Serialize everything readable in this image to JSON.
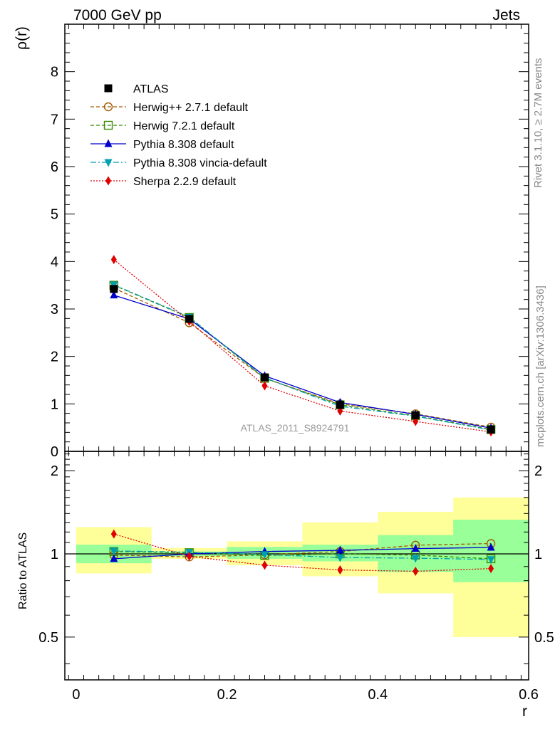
{
  "header": {
    "left": "7000 GeV pp",
    "right": "Jets"
  },
  "side_labels": {
    "top": "Rivet 3.1.10, ≥ 2.7M events",
    "bottom": "mcplots.cern.ch [arXiv:1306.3436]"
  },
  "watermark": "ATLAS_2011_S8924791",
  "chart_data": {
    "type": "line",
    "xlabel": "r",
    "ylabel": "ρ(r)",
    "ratio_ylabel": "Ratio to ATLAS",
    "xlim": [
      -0.015,
      0.6
    ],
    "ylim": [
      0,
      9.0
    ],
    "ratio_ylim": [
      0.35,
      2.35
    ],
    "x_ticks": [
      "0",
      "0.2",
      "0.4",
      "0.6"
    ],
    "y_ticks": [
      "0",
      "1",
      "2",
      "3",
      "4",
      "5",
      "6",
      "7",
      "8"
    ],
    "ratio_ticks": [
      "0.5",
      "1",
      "2"
    ],
    "ratio_tick_values": [
      0.5,
      1,
      2
    ],
    "x": [
      0.05,
      0.15,
      0.25,
      0.35,
      0.45,
      0.55
    ],
    "bin_edges": [
      0.0,
      0.1,
      0.2,
      0.3,
      0.4,
      0.5,
      0.6
    ],
    "reference": {
      "name": "ATLAS",
      "values": [
        3.42,
        2.79,
        1.56,
        0.98,
        0.76,
        0.46
      ],
      "band_stat": [
        [
          0.925,
          1.08
        ],
        [
          0.98,
          1.02
        ],
        [
          0.96,
          1.06
        ],
        [
          0.94,
          1.08
        ],
        [
          0.86,
          1.17
        ],
        [
          0.79,
          1.33
        ]
      ],
      "band_total": [
        [
          0.85,
          1.25
        ],
        [
          0.96,
          1.05
        ],
        [
          0.91,
          1.11
        ],
        [
          0.83,
          1.3
        ],
        [
          0.72,
          1.42
        ],
        [
          0.5,
          1.6
        ]
      ]
    },
    "series": [
      {
        "name": "Herwig++ 2.7.1 default",
        "color": "#a05a00",
        "dash": "5,3",
        "marker": "circle-open",
        "values": [
          3.44,
          2.71,
          1.54,
          1.0,
          0.79,
          0.51
        ],
        "ratio": [
          0.99,
          0.975,
          0.992,
          1.02,
          1.075,
          1.09
        ]
      },
      {
        "name": "Herwig 7.2.1 default",
        "color": "#3a8a00",
        "dash": "5,3",
        "marker": "square-open",
        "values": [
          3.5,
          2.82,
          1.54,
          0.98,
          0.75,
          0.46
        ],
        "ratio": [
          1.02,
          1.01,
          0.987,
          1.0,
          0.99,
          0.96
        ]
      },
      {
        "name": "Pythia 8.308 default",
        "color": "#0000cc",
        "dash": "",
        "marker": "triangle-up",
        "values": [
          3.29,
          2.79,
          1.59,
          1.03,
          0.78,
          0.49
        ],
        "ratio": [
          0.96,
          1.0,
          1.02,
          1.03,
          1.045,
          1.055
        ]
      },
      {
        "name": "Pythia 8.308 vincia-default",
        "color": "#00a0b0",
        "dash": "8,3,2,3",
        "marker": "triangle-down",
        "values": [
          3.51,
          2.83,
          1.55,
          0.95,
          0.74,
          0.45
        ],
        "ratio": [
          1.025,
          1.015,
          0.995,
          0.97,
          0.965,
          0.955
        ]
      },
      {
        "name": "Sherpa 2.2.9 default",
        "color": "#e00000",
        "dash": "2,2",
        "marker": "diamond",
        "values": [
          4.04,
          2.74,
          1.38,
          0.85,
          0.63,
          0.41
        ],
        "ratio": [
          1.18,
          0.98,
          0.91,
          0.875,
          0.865,
          0.885
        ]
      }
    ],
    "legend_position": "top-left",
    "colors": {
      "band_total": "#ffff99",
      "band_stat": "#99ff99",
      "reference_marker": "#000000"
    }
  }
}
